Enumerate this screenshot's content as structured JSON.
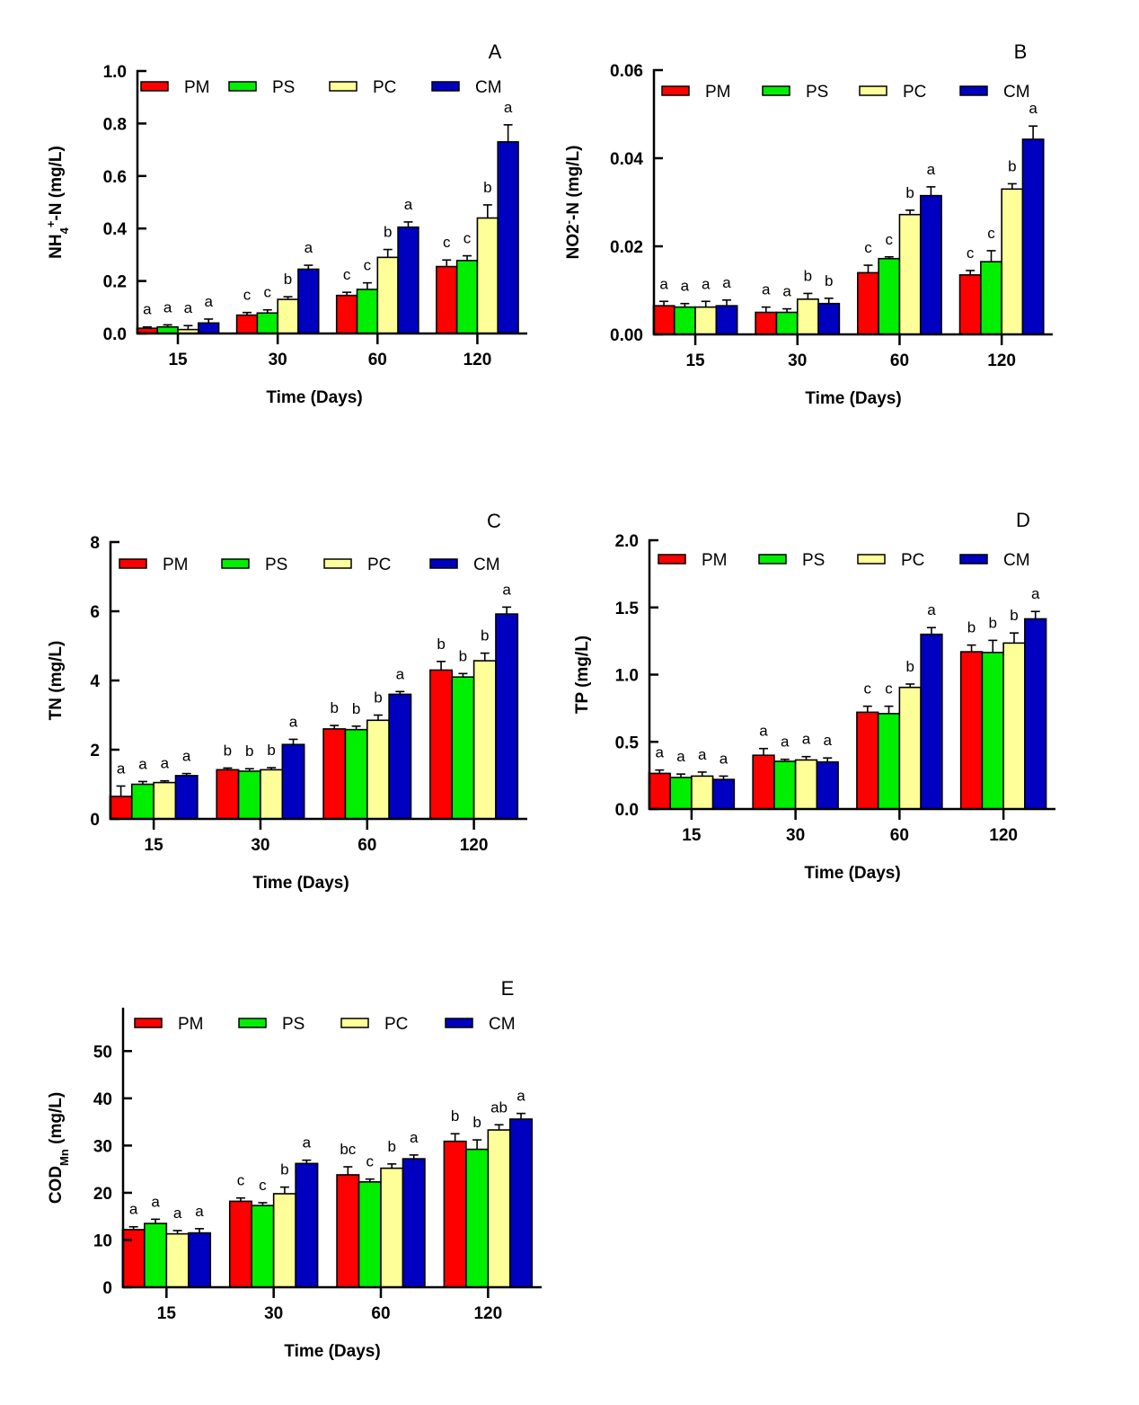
{
  "legend": [
    "PM",
    "PS",
    "PC",
    "CM"
  ],
  "colors": {
    "PM": "#ff0000",
    "PS": "#00ee00",
    "PC": "#ffff99",
    "CM": "#0000c0"
  },
  "chart_data": [
    {
      "type": "bar",
      "panel": "A",
      "categories": [
        "15",
        "30",
        "60",
        "120"
      ],
      "xlabel": "Time (Days)",
      "ylabel_parts": [
        {
          "t": "NH"
        },
        {
          "t": "4",
          "s": "sub"
        },
        {
          "t": "+",
          "s": "sup"
        },
        {
          "t": "-N (mg/L)"
        }
      ],
      "ylim": [
        0,
        1.0
      ],
      "yticks": [
        "0.0",
        "0.2",
        "0.4",
        "0.6",
        "0.8",
        "1.0"
      ],
      "series": [
        {
          "name": "PM",
          "values": [
            0.02,
            0.07,
            0.145,
            0.255
          ],
          "errors": [
            0.005,
            0.01,
            0.012,
            0.025
          ],
          "letters": [
            "a",
            "c",
            "c",
            "c"
          ]
        },
        {
          "name": "PS",
          "values": [
            0.025,
            0.078,
            0.168,
            0.278
          ],
          "errors": [
            0.008,
            0.012,
            0.025,
            0.018
          ],
          "letters": [
            "a",
            "c",
            "c",
            "c"
          ]
        },
        {
          "name": "PC",
          "values": [
            0.015,
            0.13,
            0.29,
            0.44
          ],
          "errors": [
            0.015,
            0.01,
            0.03,
            0.05
          ],
          "letters": [
            "a",
            "b",
            "b",
            "b"
          ]
        },
        {
          "name": "CM",
          "values": [
            0.04,
            0.245,
            0.405,
            0.73
          ],
          "errors": [
            0.015,
            0.015,
            0.02,
            0.065
          ],
          "letters": [
            "a",
            "a",
            "a",
            "a"
          ]
        }
      ]
    },
    {
      "type": "bar",
      "panel": "B",
      "categories": [
        "15",
        "30",
        "60",
        "120"
      ],
      "xlabel": "Time (Days)",
      "ylabel_parts": [
        {
          "t": "NO2"
        },
        {
          "t": "-",
          "s": "sup"
        },
        {
          "t": "-N (mg/L)"
        }
      ],
      "ylim": [
        0,
        0.06
      ],
      "yticks": [
        "0.00",
        "0.02",
        "0.04",
        "0.06"
      ],
      "series": [
        {
          "name": "PM",
          "values": [
            0.0065,
            0.005,
            0.014,
            0.0135
          ],
          "errors": [
            0.001,
            0.0012,
            0.0017,
            0.001
          ],
          "letters": [
            "a",
            "a",
            "c",
            "c"
          ]
        },
        {
          "name": "PS",
          "values": [
            0.0062,
            0.005,
            0.0172,
            0.0165
          ],
          "errors": [
            0.0008,
            0.0008,
            0.0004,
            0.0025
          ],
          "letters": [
            "a",
            "a",
            "c",
            "c"
          ]
        },
        {
          "name": "PC",
          "values": [
            0.0062,
            0.008,
            0.0272,
            0.033
          ],
          "errors": [
            0.0013,
            0.0013,
            0.001,
            0.0012
          ],
          "letters": [
            "a",
            "b",
            "b",
            "b"
          ]
        },
        {
          "name": "CM",
          "values": [
            0.0065,
            0.007,
            0.0315,
            0.0443
          ],
          "errors": [
            0.0013,
            0.0012,
            0.002,
            0.003
          ],
          "letters": [
            "a",
            "b",
            "a",
            "a"
          ]
        }
      ]
    },
    {
      "type": "bar",
      "panel": "C",
      "categories": [
        "15",
        "30",
        "60",
        "120"
      ],
      "xlabel": "Time (Days)",
      "ylabel_parts": [
        {
          "t": "TN (mg/L)"
        }
      ],
      "ylim": [
        0,
        8
      ],
      "yticks": [
        "0",
        "2",
        "4",
        "6",
        "8"
      ],
      "series": [
        {
          "name": "PM",
          "values": [
            0.65,
            1.42,
            2.6,
            4.3
          ],
          "errors": [
            0.3,
            0.05,
            0.1,
            0.25
          ],
          "letters": [
            "a",
            "b",
            "b",
            "b"
          ]
        },
        {
          "name": "PS",
          "values": [
            1.0,
            1.38,
            2.58,
            4.1
          ],
          "errors": [
            0.08,
            0.07,
            0.1,
            0.1
          ],
          "letters": [
            "a",
            "b",
            "b",
            "b"
          ]
        },
        {
          "name": "PC",
          "values": [
            1.05,
            1.42,
            2.85,
            4.57
          ],
          "errors": [
            0.05,
            0.06,
            0.15,
            0.22
          ],
          "letters": [
            "a",
            "b",
            "b",
            "b"
          ]
        },
        {
          "name": "CM",
          "values": [
            1.25,
            2.15,
            3.6,
            5.92
          ],
          "errors": [
            0.06,
            0.15,
            0.08,
            0.2
          ],
          "letters": [
            "a",
            "a",
            "a",
            "a"
          ]
        }
      ]
    },
    {
      "type": "bar",
      "panel": "D",
      "categories": [
        "15",
        "30",
        "60",
        "120"
      ],
      "xlabel": "Time (Days)",
      "ylabel_parts": [
        {
          "t": "TP (mg/L)"
        }
      ],
      "ylim": [
        0,
        2.0
      ],
      "yticks": [
        "0.0",
        "0.5",
        "1.0",
        "1.5",
        "2.0"
      ],
      "series": [
        {
          "name": "PM",
          "values": [
            0.265,
            0.4,
            0.72,
            1.17
          ],
          "errors": [
            0.025,
            0.05,
            0.045,
            0.05
          ],
          "letters": [
            "a",
            "a",
            "c",
            "b"
          ]
        },
        {
          "name": "PS",
          "values": [
            0.235,
            0.355,
            0.71,
            1.165
          ],
          "errors": [
            0.025,
            0.015,
            0.055,
            0.09
          ],
          "letters": [
            "a",
            "a",
            "c",
            "b"
          ]
        },
        {
          "name": "PC",
          "values": [
            0.245,
            0.365,
            0.905,
            1.235
          ],
          "errors": [
            0.03,
            0.025,
            0.025,
            0.075
          ],
          "letters": [
            "a",
            "a",
            "b",
            "b"
          ]
        },
        {
          "name": "CM",
          "values": [
            0.22,
            0.35,
            1.3,
            1.415
          ],
          "errors": [
            0.025,
            0.03,
            0.05,
            0.055
          ],
          "letters": [
            "a",
            "a",
            "a",
            "a"
          ]
        }
      ]
    },
    {
      "type": "bar",
      "panel": "E",
      "categories": [
        "15",
        "30",
        "60",
        "120"
      ],
      "xlabel": "Time (Days)",
      "ylabel_parts": [
        {
          "t": "COD"
        },
        {
          "t": "Mn",
          "s": "sub"
        },
        {
          "t": " (mg/L)"
        }
      ],
      "ylim": [
        0,
        59
      ],
      "yticks": [
        "0",
        "10",
        "20",
        "30",
        "40",
        "50"
      ],
      "series": [
        {
          "name": "PM",
          "values": [
            12.2,
            18.2,
            23.8,
            30.9
          ],
          "errors": [
            0.6,
            0.7,
            1.7,
            1.6
          ],
          "letters": [
            "a",
            "c",
            "bc",
            "b"
          ]
        },
        {
          "name": "PS",
          "values": [
            13.5,
            17.3,
            22.3,
            29.2
          ],
          "errors": [
            0.9,
            0.6,
            0.6,
            2.0
          ],
          "letters": [
            "a",
            "c",
            "c",
            "b"
          ]
        },
        {
          "name": "PC",
          "values": [
            11.3,
            19.8,
            25.2,
            33.3
          ],
          "errors": [
            0.7,
            1.4,
            0.9,
            1.1
          ],
          "letters": [
            "a",
            "b",
            "b",
            "ab"
          ]
        },
        {
          "name": "CM",
          "values": [
            11.5,
            26.2,
            27.2,
            35.6
          ],
          "errors": [
            0.9,
            0.7,
            0.8,
            1.2
          ],
          "letters": [
            "a",
            "a",
            "a",
            "a"
          ]
        }
      ]
    }
  ]
}
